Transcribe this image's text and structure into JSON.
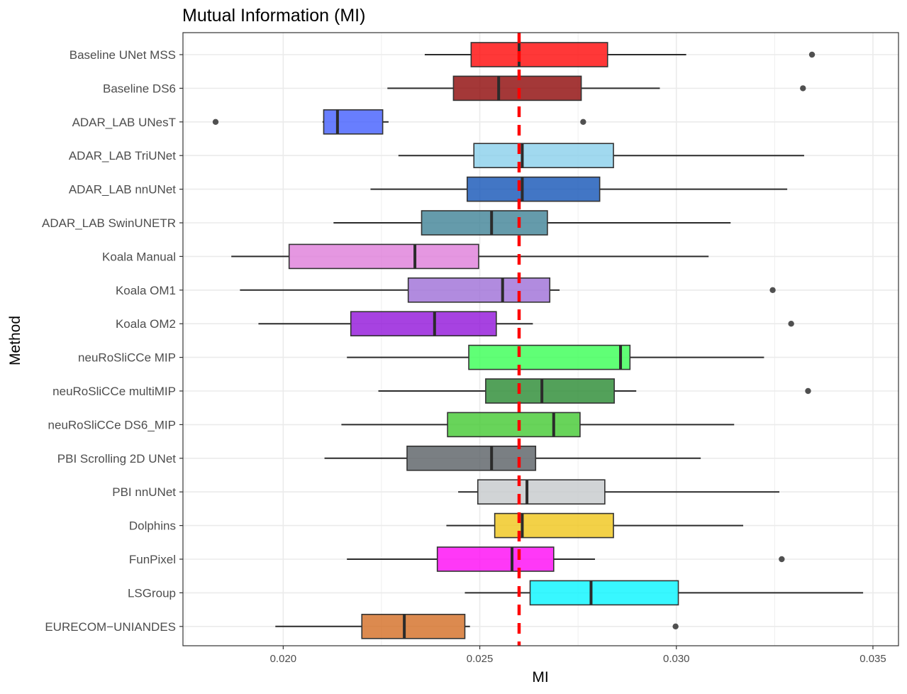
{
  "chart_data": {
    "type": "boxplot",
    "title": "Mutual Information (MI)",
    "xlabel": "MI",
    "ylabel": "Method",
    "xlim": [
      0.01745,
      0.03565
    ],
    "xticks": [
      0.02,
      0.025,
      0.03,
      0.035
    ],
    "xtick_labels": [
      "0.020",
      "0.025",
      "0.030",
      "0.035"
    ],
    "reference_line": {
      "value": 0.026,
      "color": "#ff0000",
      "style": "dashed"
    },
    "grid": true,
    "series": [
      {
        "name": "Baseline UNet MSS",
        "color": "#ff0000",
        "whisker_low": 0.0236,
        "q1": 0.02478,
        "median": 0.026,
        "q3": 0.02825,
        "whisker_high": 0.03025,
        "outliers": [
          0.03345
        ]
      },
      {
        "name": "Baseline DS6",
        "color": "#8b0000",
        "whisker_low": 0.02265,
        "q1": 0.02433,
        "median": 0.02548,
        "q3": 0.02758,
        "whisker_high": 0.02958,
        "outliers": [
          0.03322
        ]
      },
      {
        "name": "ADAR_LAB UNesT",
        "color": "#3d5afe",
        "whisker_low": 0.021,
        "q1": 0.02103,
        "median": 0.02138,
        "q3": 0.02253,
        "whisker_high": 0.02268,
        "outliers": [
          0.01828,
          0.02763
        ]
      },
      {
        "name": "ADAR_LAB TriUNet",
        "color": "#87ceeb",
        "whisker_low": 0.02293,
        "q1": 0.02485,
        "median": 0.02608,
        "q3": 0.0284,
        "whisker_high": 0.03325,
        "outliers": []
      },
      {
        "name": "ADAR_LAB nnUNet",
        "color": "#0d4fb5",
        "whisker_low": 0.02222,
        "q1": 0.02468,
        "median": 0.02608,
        "q3": 0.02805,
        "whisker_high": 0.03282,
        "outliers": []
      },
      {
        "name": "ADAR_LAB SwinUNETR",
        "color": "#3a7f94",
        "whisker_low": 0.02128,
        "q1": 0.02352,
        "median": 0.0253,
        "q3": 0.02672,
        "whisker_high": 0.03138,
        "outliers": []
      },
      {
        "name": "Koala Manual",
        "color": "#de7ad9",
        "whisker_low": 0.01868,
        "q1": 0.02015,
        "median": 0.02335,
        "q3": 0.02497,
        "whisker_high": 0.03082,
        "outliers": []
      },
      {
        "name": "Koala OM1",
        "color": "#9b6ad6",
        "whisker_low": 0.0189,
        "q1": 0.02318,
        "median": 0.02558,
        "q3": 0.02678,
        "whisker_high": 0.02703,
        "outliers": [
          0.03245
        ]
      },
      {
        "name": "Koala OM2",
        "color": "#8e0dd9",
        "whisker_low": 0.01937,
        "q1": 0.02172,
        "median": 0.02385,
        "q3": 0.02542,
        "whisker_high": 0.02635,
        "outliers": [
          0.03292
        ]
      },
      {
        "name": "neuRoSliCCe MIP",
        "color": "#33ff4f",
        "whisker_low": 0.02162,
        "q1": 0.02472,
        "median": 0.02858,
        "q3": 0.02882,
        "whisker_high": 0.03223,
        "outliers": []
      },
      {
        "name": "neuRoSliCCe multiMIP",
        "color": "#22862b",
        "whisker_low": 0.02242,
        "q1": 0.02515,
        "median": 0.02658,
        "q3": 0.02842,
        "whisker_high": 0.02898,
        "outliers": [
          0.03335
        ]
      },
      {
        "name": "neuRoSliCCe DS6_MIP",
        "color": "#3ec82b",
        "whisker_low": 0.02148,
        "q1": 0.02418,
        "median": 0.02688,
        "q3": 0.02755,
        "whisker_high": 0.03147,
        "outliers": []
      },
      {
        "name": "PBI Scrolling 2D UNet",
        "color": "#545b60",
        "whisker_low": 0.02105,
        "q1": 0.02315,
        "median": 0.0253,
        "q3": 0.02642,
        "whisker_high": 0.03062,
        "outliers": []
      },
      {
        "name": "PBI nnUNet",
        "color": "#c4c8cb",
        "whisker_low": 0.02445,
        "q1": 0.02495,
        "median": 0.0262,
        "q3": 0.02818,
        "whisker_high": 0.03262,
        "outliers": []
      },
      {
        "name": "Dolphins",
        "color": "#f0c413",
        "whisker_low": 0.02415,
        "q1": 0.02538,
        "median": 0.02608,
        "q3": 0.0284,
        "whisker_high": 0.0317,
        "outliers": []
      },
      {
        "name": "FunPixel",
        "color": "#ff00f5",
        "whisker_low": 0.02162,
        "q1": 0.02392,
        "median": 0.02582,
        "q3": 0.02688,
        "whisker_high": 0.02793,
        "outliers": [
          0.03268
        ]
      },
      {
        "name": "LSGroup",
        "color": "#00f5ff",
        "whisker_low": 0.02462,
        "q1": 0.02628,
        "median": 0.02783,
        "q3": 0.03005,
        "whisker_high": 0.03475,
        "outliers": []
      },
      {
        "name": "EURECOM−UNIANDES",
        "color": "#d2691e",
        "whisker_low": 0.0198,
        "q1": 0.022,
        "median": 0.02308,
        "q3": 0.02462,
        "whisker_high": 0.02475,
        "outliers": [
          0.02998
        ]
      }
    ]
  },
  "colors": {
    "panel_border": "#333333",
    "grid_major": "#ebebeb",
    "box_outline": "#333333",
    "median": "#2b2b2b",
    "whisker": "#2b2b2b",
    "outlier": "#333333"
  }
}
